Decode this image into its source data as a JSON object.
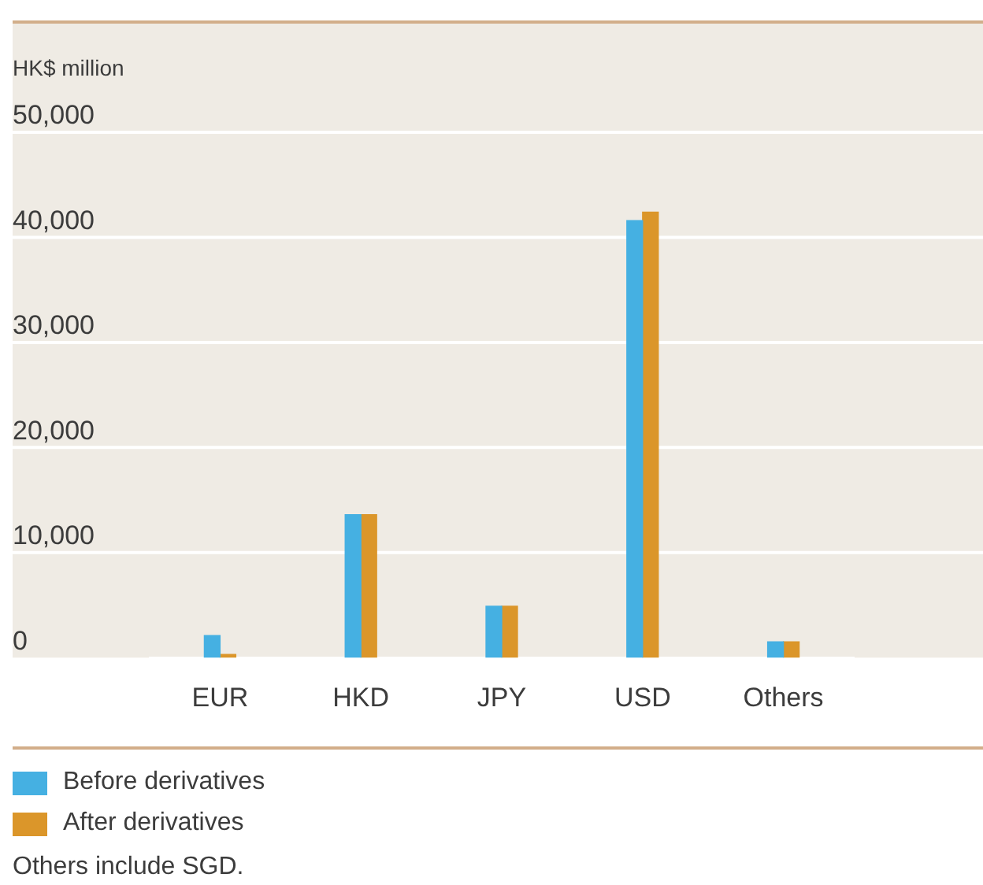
{
  "chart_data": {
    "type": "bar",
    "ylabel": "HK$ million",
    "categories": [
      "EUR",
      "HKD",
      "JPY",
      "USD",
      "Others"
    ],
    "series": [
      {
        "name": "Before derivatives",
        "color": "#45b0e2",
        "values": [
          2100,
          13600,
          4900,
          41600,
          1500
        ]
      },
      {
        "name": "After derivatives",
        "color": "#db962a",
        "values": [
          300,
          13600,
          4900,
          42400,
          1500
        ]
      }
    ],
    "ylim": [
      0,
      50000
    ],
    "yticks": [
      {
        "value": 0,
        "label": "0"
      },
      {
        "value": 10000,
        "label": "10,000"
      },
      {
        "value": 20000,
        "label": "20,000"
      },
      {
        "value": 30000,
        "label": "30,000"
      },
      {
        "value": 40000,
        "label": "40,000"
      },
      {
        "value": 50000,
        "label": "50,000"
      }
    ],
    "grid": "y",
    "legend": "bottom",
    "annotations": [
      "Others include SGD."
    ]
  }
}
